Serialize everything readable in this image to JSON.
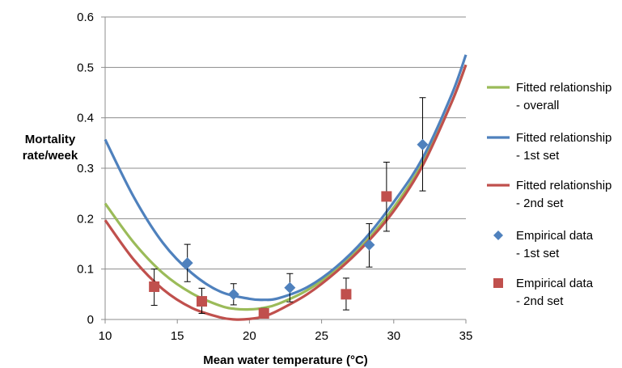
{
  "chart_data": {
    "type": "scatter",
    "xlabel": "Mean water temperature (°C)",
    "ylabel_lines": [
      "Mortality",
      "rate/week"
    ],
    "xlim": [
      10,
      35
    ],
    "ylim": [
      0,
      0.6
    ],
    "xticks": [
      10,
      15,
      20,
      25,
      30,
      35
    ],
    "yticks": [
      0,
      0.1,
      0.2,
      0.3,
      0.4,
      0.5,
      0.6
    ],
    "ytick_labels": [
      "0",
      "0.1",
      "0.2",
      "0.3",
      "0.4",
      "0.5",
      "0.6"
    ],
    "grid": "horizontal",
    "legend_position": "right",
    "curves": [
      {
        "name_lines": [
          "Fitted relationship",
          "- overall"
        ],
        "color": "#9bbb59",
        "points": [
          [
            10,
            0.23
          ],
          [
            12,
            0.152
          ],
          [
            14,
            0.092
          ],
          [
            16,
            0.052
          ],
          [
            18,
            0.027
          ],
          [
            19,
            0.021
          ],
          [
            20,
            0.02
          ],
          [
            21,
            0.023
          ],
          [
            22,
            0.031
          ],
          [
            24,
            0.058
          ],
          [
            26,
            0.098
          ],
          [
            28,
            0.152
          ],
          [
            30,
            0.222
          ],
          [
            32,
            0.31
          ],
          [
            34,
            0.43
          ],
          [
            35,
            0.505
          ]
        ]
      },
      {
        "name_lines": [
          "Fitted relationship",
          "- 1st set"
        ],
        "color": "#4f81bd",
        "points": [
          [
            10,
            0.357
          ],
          [
            12,
            0.242
          ],
          [
            14,
            0.152
          ],
          [
            16,
            0.092
          ],
          [
            18,
            0.055
          ],
          [
            20,
            0.041
          ],
          [
            21,
            0.039
          ],
          [
            22,
            0.042
          ],
          [
            24,
            0.064
          ],
          [
            26,
            0.104
          ],
          [
            28,
            0.16
          ],
          [
            30,
            0.233
          ],
          [
            32,
            0.32
          ],
          [
            34,
            0.445
          ],
          [
            35,
            0.525
          ]
        ]
      },
      {
        "name_lines": [
          "Fitted relationship",
          "- 2nd set"
        ],
        "color": "#c0504d",
        "points": [
          [
            10,
            0.197
          ],
          [
            12,
            0.118
          ],
          [
            14,
            0.06
          ],
          [
            16,
            0.023
          ],
          [
            18,
            0.004
          ],
          [
            19,
            0.0
          ],
          [
            20,
            0.001
          ],
          [
            21,
            0.006
          ],
          [
            22,
            0.018
          ],
          [
            24,
            0.05
          ],
          [
            26,
            0.094
          ],
          [
            28,
            0.148
          ],
          [
            30,
            0.215
          ],
          [
            32,
            0.305
          ],
          [
            34,
            0.43
          ],
          [
            35,
            0.505
          ]
        ]
      }
    ],
    "scatter_series": [
      {
        "name_lines": [
          "Empirical data",
          "- 1st set"
        ],
        "color": "#4f81bd",
        "marker": "diamond",
        "points": [
          {
            "x": 15.7,
            "y": 0.112,
            "lo": 0.075,
            "hi": 0.149
          },
          {
            "x": 18.9,
            "y": 0.05,
            "lo": 0.029,
            "hi": 0.071
          },
          {
            "x": 22.8,
            "y": 0.063,
            "lo": 0.035,
            "hi": 0.091
          },
          {
            "x": 28.3,
            "y": 0.148,
            "lo": 0.104,
            "hi": 0.19
          },
          {
            "x": 32.0,
            "y": 0.347,
            "lo": 0.255,
            "hi": 0.44
          }
        ]
      },
      {
        "name_lines": [
          "Empirical data",
          "- 2nd set"
        ],
        "color": "#c0504d",
        "marker": "square",
        "points": [
          {
            "x": 13.4,
            "y": 0.065,
            "lo": 0.028,
            "hi": 0.1
          },
          {
            "x": 16.7,
            "y": 0.036,
            "lo": 0.012,
            "hi": 0.062
          },
          {
            "x": 21.0,
            "y": 0.012,
            "lo": 0.003,
            "hi": 0.022
          },
          {
            "x": 26.7,
            "y": 0.05,
            "lo": 0.019,
            "hi": 0.082
          },
          {
            "x": 29.5,
            "y": 0.244,
            "lo": 0.175,
            "hi": 0.312
          }
        ]
      }
    ]
  }
}
